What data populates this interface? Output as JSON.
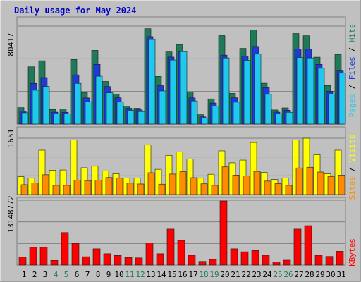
{
  "chart_data": [
    {
      "type": "bar",
      "title": "Daily usage for May 2024",
      "categories": [
        "1",
        "2",
        "3",
        "4",
        "5",
        "6",
        "7",
        "8",
        "9",
        "10",
        "11",
        "12",
        "13",
        "14",
        "15",
        "16",
        "17",
        "18",
        "19",
        "20",
        "21",
        "22",
        "23",
        "24",
        "25",
        "26",
        "27",
        "28",
        "29",
        "30",
        "31"
      ],
      "weekend_days": [
        "4",
        "5",
        "11",
        "12",
        "18",
        "19",
        "25",
        "26"
      ],
      "ymax_label": "80417",
      "ylim": [
        0,
        80417
      ],
      "series_labels": {
        "pages": "Pages",
        "files": "Files",
        "hits": "Hits",
        "sep": " / "
      },
      "series": [
        {
          "name": "Hits",
          "color": "#1f7a57",
          "values": [
            13500,
            47000,
            52000,
            12000,
            12500,
            53000,
            26000,
            60500,
            35000,
            24500,
            14800,
            13000,
            78300,
            39100,
            59200,
            65100,
            26300,
            7700,
            20700,
            72600,
            25200,
            62100,
            77300,
            33500,
            11600,
            13300,
            74300,
            72500,
            54900,
            31700,
            57200
          ]
        },
        {
          "name": "Files",
          "color": "#1f3ad8",
          "values": [
            10800,
            33400,
            38200,
            9800,
            9700,
            40400,
            21500,
            49000,
            30800,
            21600,
            13000,
            11700,
            71800,
            31500,
            55000,
            59200,
            21500,
            5900,
            17300,
            56600,
            21600,
            55800,
            63700,
            30000,
            9800,
            11400,
            61500,
            61400,
            49000,
            27000,
            44200
          ]
        },
        {
          "name": "Pages",
          "color": "#1fc9ee",
          "values": [
            9300,
            27800,
            30900,
            8400,
            8400,
            33400,
            18400,
            39300,
            25700,
            18400,
            11300,
            10300,
            69400,
            27200,
            52600,
            59500,
            19000,
            5000,
            14600,
            54300,
            18000,
            52400,
            57400,
            24400,
            8500,
            9700,
            54700,
            54300,
            45800,
            24700,
            41800
          ]
        }
      ]
    },
    {
      "type": "bar",
      "ymax_label": "1651",
      "ylim": [
        0,
        1651
      ],
      "series_labels": {
        "sites": "Sites",
        "visits": "Visits",
        "sep": " / "
      },
      "series": [
        {
          "name": "Visits",
          "color": "#ffff00",
          "values": [
            525,
            480,
            1300,
            715,
            720,
            1600,
            785,
            830,
            690,
            610,
            485,
            485,
            1450,
            740,
            1150,
            1250,
            1040,
            480,
            595,
            1280,
            930,
            1010,
            1525,
            650,
            440,
            485,
            1600,
            1650,
            1170,
            610,
            1300
          ]
        },
        {
          "name": "Sites",
          "color": "#ff8c00",
          "values": [
            290,
            340,
            580,
            270,
            270,
            420,
            410,
            420,
            500,
            480,
            335,
            310,
            640,
            305,
            600,
            670,
            495,
            315,
            270,
            810,
            570,
            550,
            680,
            395,
            320,
            270,
            780,
            800,
            660,
            525,
            570
          ]
        }
      ]
    },
    {
      "type": "bar",
      "ymax_label": "13148772",
      "ylim": [
        0,
        13148772
      ],
      "series_labels": {
        "kbytes": "KBytes"
      },
      "series": [
        {
          "name": "KBytes",
          "color": "#ff0000",
          "values": [
            1600000,
            3600000,
            3600000,
            950000,
            6600000,
            4400000,
            1700000,
            3300000,
            2300000,
            1950000,
            1550000,
            1450000,
            4500000,
            2300000,
            7300000,
            5000000,
            2000000,
            750000,
            1150000,
            13000000,
            3300000,
            2700000,
            2950000,
            2000000,
            650000,
            1000000,
            7300000,
            8000000,
            2000000,
            1750000,
            2800000
          ]
        }
      ]
    }
  ]
}
